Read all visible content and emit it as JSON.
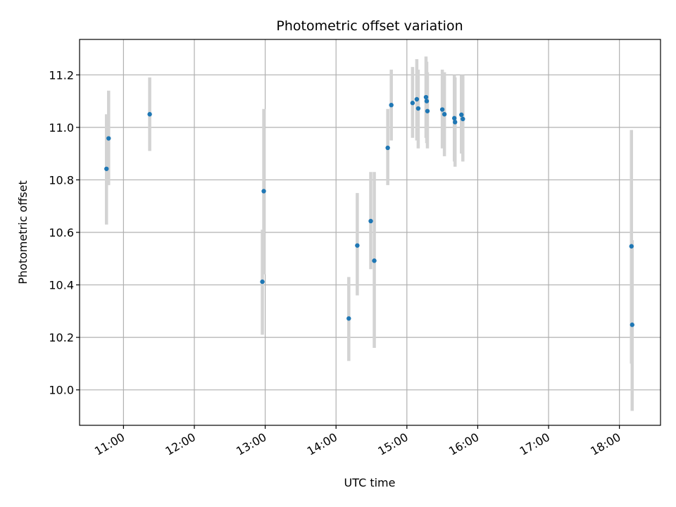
{
  "chart_data": {
    "type": "scatter",
    "title": "Photometric offset variation",
    "xlabel": "UTC time",
    "ylabel": "Photometric offset",
    "x_unit": "hours UTC",
    "xlim": [
      10.38,
      18.58
    ],
    "ylim": [
      9.865,
      11.335
    ],
    "xticks": [
      11,
      12,
      13,
      14,
      15,
      16,
      17,
      18
    ],
    "xtick_labels": [
      "11:00",
      "12:00",
      "13:00",
      "14:00",
      "15:00",
      "16:00",
      "17:00",
      "18:00"
    ],
    "yticks": [
      10.0,
      10.2,
      10.4,
      10.6,
      10.8,
      11.0,
      11.2
    ],
    "ytick_labels": [
      "10.0",
      "10.2",
      "10.4",
      "10.6",
      "10.8",
      "11.0",
      "11.2"
    ],
    "grid": true,
    "colors": {
      "point": "#1f77b4",
      "errorbar": "#d3d3d3",
      "grid": "#b0b0b0"
    },
    "points": [
      {
        "x": 10.76,
        "y": 10.842,
        "lo": 10.63,
        "hi": 11.05
      },
      {
        "x": 10.79,
        "y": 10.958,
        "lo": 10.78,
        "hi": 11.14
      },
      {
        "x": 11.37,
        "y": 11.05,
        "lo": 10.91,
        "hi": 11.19
      },
      {
        "x": 12.96,
        "y": 10.412,
        "lo": 10.21,
        "hi": 10.61
      },
      {
        "x": 12.98,
        "y": 10.757,
        "lo": 10.44,
        "hi": 11.07
      },
      {
        "x": 14.18,
        "y": 10.272,
        "lo": 10.11,
        "hi": 10.43
      },
      {
        "x": 14.3,
        "y": 10.55,
        "lo": 10.36,
        "hi": 10.75
      },
      {
        "x": 14.49,
        "y": 10.643,
        "lo": 10.46,
        "hi": 10.83
      },
      {
        "x": 14.54,
        "y": 10.492,
        "lo": 10.16,
        "hi": 10.83
      },
      {
        "x": 14.73,
        "y": 10.922,
        "lo": 10.78,
        "hi": 11.07
      },
      {
        "x": 14.78,
        "y": 11.085,
        "lo": 10.95,
        "hi": 11.22
      },
      {
        "x": 15.08,
        "y": 11.093,
        "lo": 10.96,
        "hi": 11.23
      },
      {
        "x": 15.14,
        "y": 11.107,
        "lo": 10.95,
        "hi": 11.26
      },
      {
        "x": 15.16,
        "y": 11.072,
        "lo": 10.92,
        "hi": 11.22
      },
      {
        "x": 15.27,
        "y": 11.115,
        "lo": 10.96,
        "hi": 11.27
      },
      {
        "x": 15.28,
        "y": 11.1,
        "lo": 10.94,
        "hi": 11.25
      },
      {
        "x": 15.29,
        "y": 11.062,
        "lo": 10.92,
        "hi": 11.21
      },
      {
        "x": 15.5,
        "y": 11.068,
        "lo": 10.92,
        "hi": 11.22
      },
      {
        "x": 15.53,
        "y": 11.05,
        "lo": 10.89,
        "hi": 11.21
      },
      {
        "x": 15.67,
        "y": 11.035,
        "lo": 10.87,
        "hi": 11.2
      },
      {
        "x": 15.68,
        "y": 11.02,
        "lo": 10.85,
        "hi": 11.19
      },
      {
        "x": 15.77,
        "y": 11.048,
        "lo": 10.9,
        "hi": 11.2
      },
      {
        "x": 15.79,
        "y": 11.032,
        "lo": 10.87,
        "hi": 11.2
      },
      {
        "x": 18.17,
        "y": 10.547,
        "lo": 10.1,
        "hi": 10.99
      },
      {
        "x": 18.18,
        "y": 10.248,
        "lo": 9.92,
        "hi": 10.57
      }
    ]
  }
}
